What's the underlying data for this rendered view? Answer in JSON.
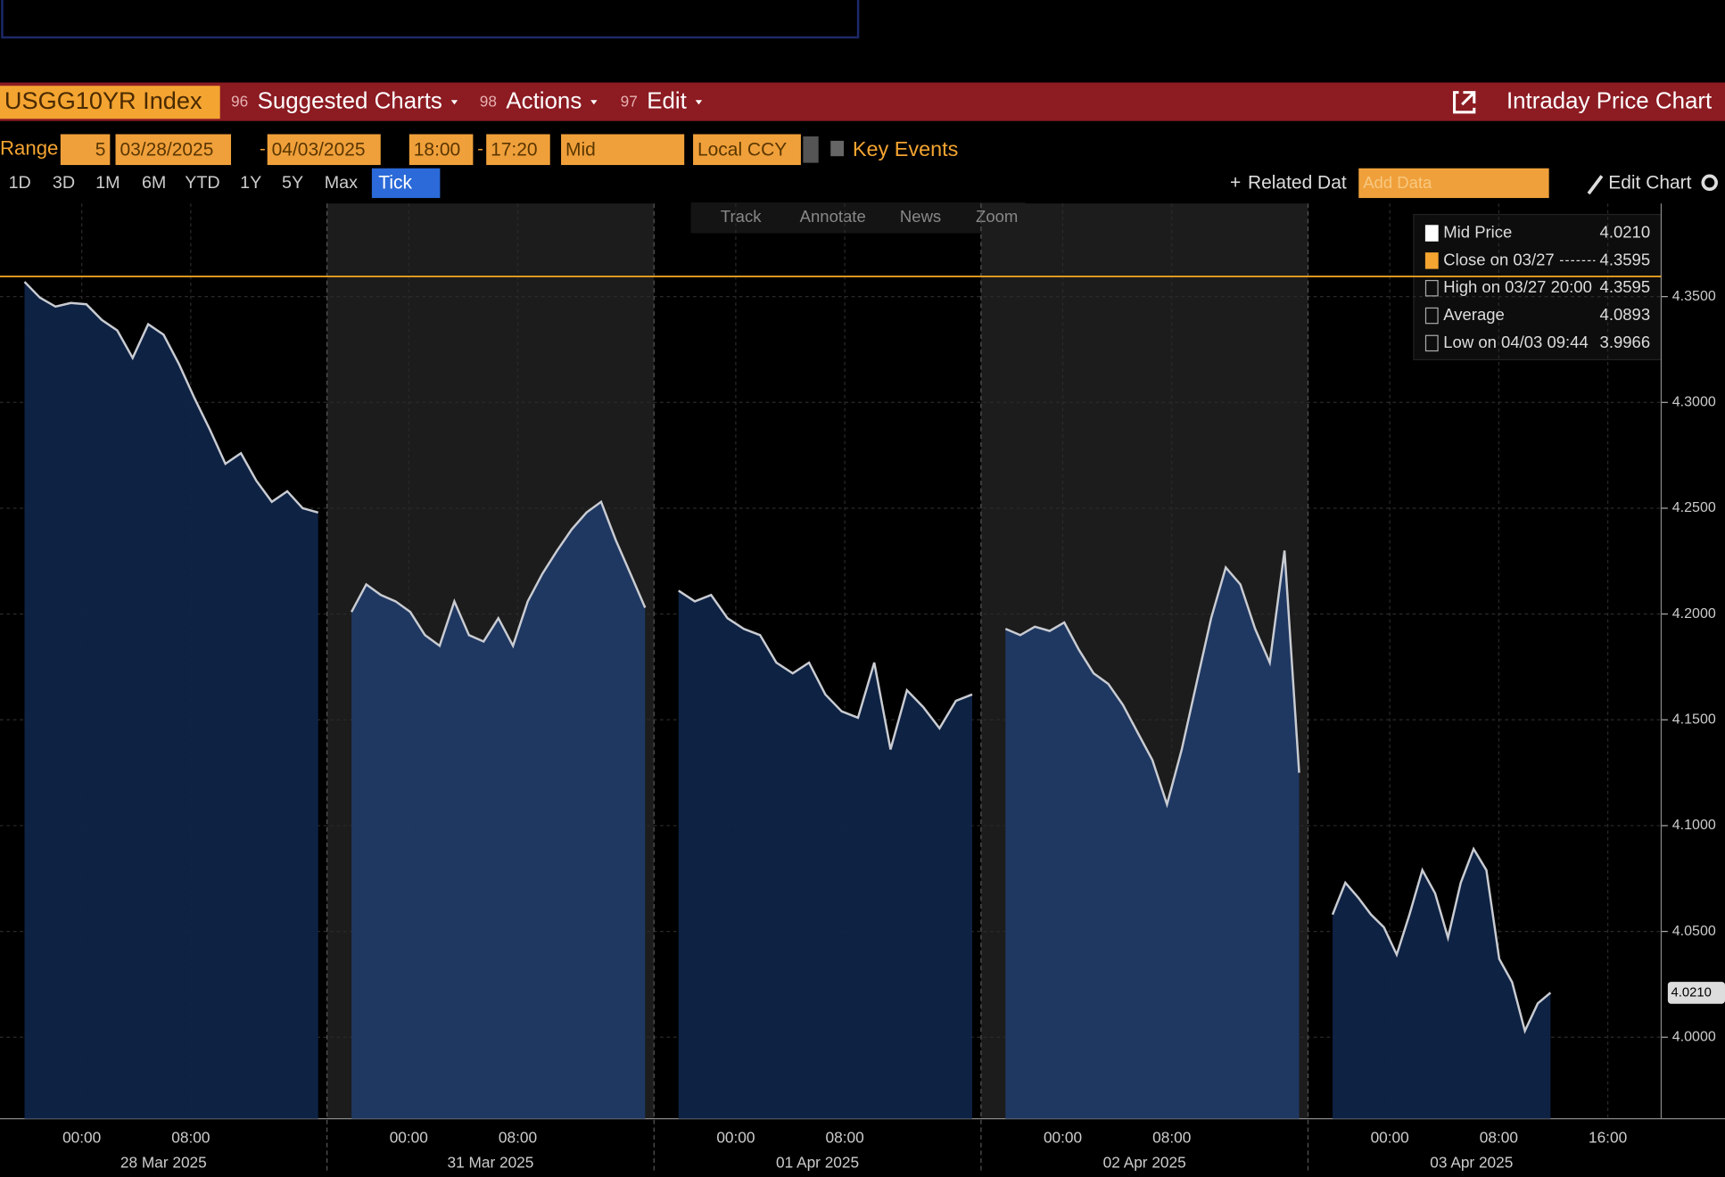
{
  "toolbar": {
    "ticker": "USGG10YR Index",
    "menus": [
      {
        "key": "96",
        "label": "Suggested Charts"
      },
      {
        "key": "98",
        "label": "Actions"
      },
      {
        "key": "97",
        "label": "Edit"
      }
    ],
    "title": "Intraday Price Chart"
  },
  "range_bar": {
    "label": "Range",
    "period": "5",
    "start": "03/28/2025",
    "end": "04/03/2025",
    "time_start": "18:00",
    "time_end": "17:20",
    "field": "Mid",
    "currency": "Local CCY",
    "key_events": "Key Events"
  },
  "periods": [
    "1D",
    "3D",
    "1M",
    "6M",
    "YTD",
    "1Y",
    "5Y",
    "Max",
    "Tick"
  ],
  "right_tools": {
    "related": "Related Dat",
    "add_data": "Add Data",
    "edit_chart": "Edit Chart"
  },
  "chart_tools": [
    "Track",
    "Annotate",
    "News",
    "Zoom"
  ],
  "chart_data": {
    "type": "area",
    "ylim": [
      3.9615,
      4.394
    ],
    "yticks": [
      {
        "value": 4.0,
        "label": "4.0000"
      },
      {
        "value": 4.05,
        "label": "4.0500"
      },
      {
        "value": 4.1,
        "label": "4.1000"
      },
      {
        "value": 4.15,
        "label": "4.1500"
      },
      {
        "value": 4.2,
        "label": "4.2000"
      },
      {
        "value": 4.25,
        "label": "4.2500"
      },
      {
        "value": 4.3,
        "label": "4.3000"
      },
      {
        "value": 4.35,
        "label": "4.3500"
      }
    ],
    "legend": [
      {
        "name": "Mid Price",
        "value": 4.021,
        "value_label": "4.0210"
      },
      {
        "name": "Close on 03/27",
        "value": 4.3595
      },
      {
        "name": "High on 03/27 20:00",
        "value": 4.3595
      },
      {
        "name": "Average",
        "value": 4.0893
      },
      {
        "name": "Low on 04/03 09:44",
        "value": 3.9966
      }
    ],
    "sessions": [
      {
        "date": "28 Mar 2025",
        "ticks": [
          "00:00",
          "08:00"
        ],
        "values": [
          4.357,
          4.3495,
          4.3453,
          4.347,
          4.3464,
          4.339,
          4.334,
          4.321,
          4.337,
          4.332,
          4.318,
          4.302,
          4.287,
          4.271,
          4.276,
          4.263,
          4.253,
          4.258,
          4.25,
          4.248
        ]
      },
      {
        "date": "31 Mar 2025",
        "ticks": [
          "00:00",
          "08:00"
        ],
        "values": [
          4.201,
          4.214,
          4.209,
          4.206,
          4.201,
          4.19,
          4.185,
          4.206,
          4.19,
          4.187,
          4.198,
          4.185,
          4.206,
          4.219,
          4.23,
          4.24,
          4.248,
          4.253,
          4.235,
          4.219,
          4.203
        ]
      },
      {
        "date": "01 Apr 2025",
        "ticks": [
          "00:00",
          "08:00"
        ],
        "values": [
          4.211,
          4.206,
          4.209,
          4.198,
          4.193,
          4.19,
          4.177,
          4.172,
          4.177,
          4.162,
          4.154,
          4.151,
          4.177,
          4.136,
          4.164,
          4.156,
          4.146,
          4.159,
          4.162
        ]
      },
      {
        "date": "02 Apr 2025",
        "ticks": [
          "00:00",
          "08:00"
        ],
        "values": [
          4.193,
          4.19,
          4.194,
          4.192,
          4.196,
          4.183,
          4.172,
          4.167,
          4.157,
          4.144,
          4.131,
          4.11,
          4.136,
          4.167,
          4.198,
          4.222,
          4.214,
          4.193,
          4.177,
          4.23,
          4.125
        ]
      },
      {
        "date": "03 Apr 2025",
        "ticks": [
          "00:00",
          "08:00",
          "16:00"
        ],
        "values": [
          4.058,
          4.073,
          4.066,
          4.058,
          4.052,
          4.039,
          4.058,
          4.079,
          4.068,
          4.047,
          4.073,
          4.089,
          4.079,
          4.037,
          4.026,
          4.003,
          4.016,
          4.021
        ]
      }
    ]
  }
}
